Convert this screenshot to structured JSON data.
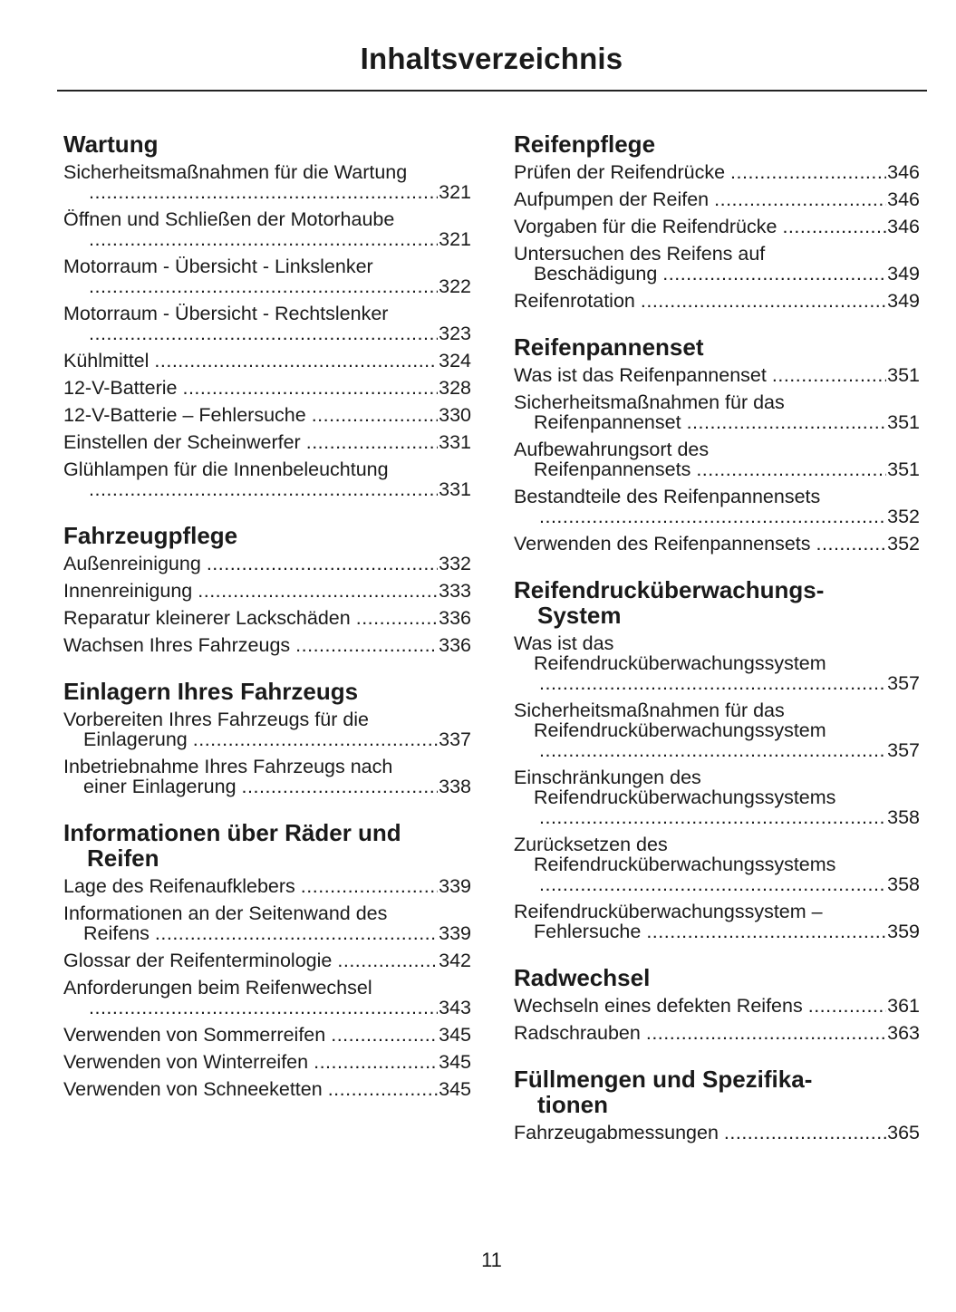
{
  "title": "Inhaltsverzeichnis",
  "page_number": "11",
  "columns": [
    [
      {
        "heading": [
          "Wartung"
        ],
        "entries": [
          {
            "lines": [
              "Sicherheitsmaßnahmen für die Wartung",
              ""
            ],
            "page": "321"
          },
          {
            "lines": [
              "Öffnen und Schließen der Motorhaube",
              ""
            ],
            "page": "321"
          },
          {
            "lines": [
              "Motorraum - Übersicht - Linkslenker",
              ""
            ],
            "page": "322"
          },
          {
            "lines": [
              "Motorraum - Übersicht - Rechtslenker",
              ""
            ],
            "page": "323"
          },
          {
            "lines": [
              "Kühlmittel"
            ],
            "page": "324"
          },
          {
            "lines": [
              "12-V-Batterie"
            ],
            "page": "328"
          },
          {
            "lines": [
              "12-V-Batterie – Fehlersuche"
            ],
            "page": "330"
          },
          {
            "lines": [
              "Einstellen der Scheinwerfer"
            ],
            "page": "331"
          },
          {
            "lines": [
              "Glühlampen für die Innenbeleuchtung",
              ""
            ],
            "page": "331"
          }
        ]
      },
      {
        "heading": [
          "Fahrzeugpflege"
        ],
        "entries": [
          {
            "lines": [
              "Außenreinigung"
            ],
            "page": "332"
          },
          {
            "lines": [
              "Innenreinigung"
            ],
            "page": "333"
          },
          {
            "lines": [
              "Reparatur kleinerer Lackschäden"
            ],
            "page": "336"
          },
          {
            "lines": [
              "Wachsen Ihres Fahrzeugs"
            ],
            "page": "336"
          }
        ]
      },
      {
        "heading": [
          "Einlagern Ihres Fahrzeugs"
        ],
        "entries": [
          {
            "lines": [
              "Vorbereiten Ihres Fahrzeugs für die",
              "Einlagerung"
            ],
            "page": "337"
          },
          {
            "lines": [
              "Inbetriebnahme Ihres Fahrzeugs nach",
              "einer Einlagerung"
            ],
            "page": "338"
          }
        ]
      },
      {
        "heading": [
          "Informationen über Räder und",
          "Reifen"
        ],
        "entries": [
          {
            "lines": [
              "Lage des Reifenaufklebers"
            ],
            "page": "339"
          },
          {
            "lines": [
              "Informationen an der Seitenwand des",
              "Reifens"
            ],
            "page": "339"
          },
          {
            "lines": [
              "Glossar der Reifenterminologie"
            ],
            "page": "342"
          },
          {
            "lines": [
              "Anforderungen beim Reifenwechsel",
              ""
            ],
            "page": "343"
          },
          {
            "lines": [
              "Verwenden von Sommerreifen"
            ],
            "page": "345"
          },
          {
            "lines": [
              "Verwenden von Winterreifen"
            ],
            "page": "345"
          },
          {
            "lines": [
              "Verwenden von Schneeketten"
            ],
            "page": "345"
          }
        ]
      }
    ],
    [
      {
        "heading": [
          "Reifenpflege"
        ],
        "entries": [
          {
            "lines": [
              "Prüfen der Reifendrücke"
            ],
            "page": "346"
          },
          {
            "lines": [
              "Aufpumpen der Reifen"
            ],
            "page": "346"
          },
          {
            "lines": [
              "Vorgaben für die Reifendrücke"
            ],
            "page": "346"
          },
          {
            "lines": [
              "Untersuchen des Reifens auf",
              "Beschädigung"
            ],
            "page": "349"
          },
          {
            "lines": [
              "Reifenrotation"
            ],
            "page": "349"
          }
        ]
      },
      {
        "heading": [
          "Reifenpannenset"
        ],
        "entries": [
          {
            "lines": [
              "Was ist das Reifenpannenset"
            ],
            "page": "351"
          },
          {
            "lines": [
              "Sicherheitsmaßnahmen für das",
              "Reifenpannenset"
            ],
            "page": "351"
          },
          {
            "lines": [
              "Aufbewahrungsort des",
              "Reifenpannensets"
            ],
            "page": "351"
          },
          {
            "lines": [
              "Bestandteile des Reifenpannensets",
              ""
            ],
            "page": "352"
          },
          {
            "lines": [
              "Verwenden des Reifenpannensets"
            ],
            "page": "352"
          }
        ]
      },
      {
        "heading": [
          "Reifendrucküberwachungs-",
          "System"
        ],
        "entries": [
          {
            "lines": [
              "Was ist das",
              "Reifendrucküberwachungssystem",
              ""
            ],
            "page": "357"
          },
          {
            "lines": [
              "Sicherheitsmaßnahmen für das",
              "Reifendrucküberwachungssystem",
              ""
            ],
            "page": "357"
          },
          {
            "lines": [
              "Einschränkungen des",
              "Reifendrucküberwachungssystems",
              ""
            ],
            "page": "358"
          },
          {
            "lines": [
              "Zurücksetzen des",
              "Reifendrucküberwachungssystems",
              ""
            ],
            "page": "358"
          },
          {
            "lines": [
              "Reifendrucküberwachungssystem –",
              "Fehlersuche"
            ],
            "page": "359"
          }
        ]
      },
      {
        "heading": [
          "Radwechsel"
        ],
        "entries": [
          {
            "lines": [
              "Wechseln eines defekten Reifens"
            ],
            "page": "361"
          },
          {
            "lines": [
              "Radschrauben"
            ],
            "page": "363"
          }
        ]
      },
      {
        "heading": [
          "Füllmengen und Spezifika-",
          "tionen"
        ],
        "entries": [
          {
            "lines": [
              "Fahrzeugabmessungen"
            ],
            "page": "365"
          }
        ]
      }
    ]
  ]
}
